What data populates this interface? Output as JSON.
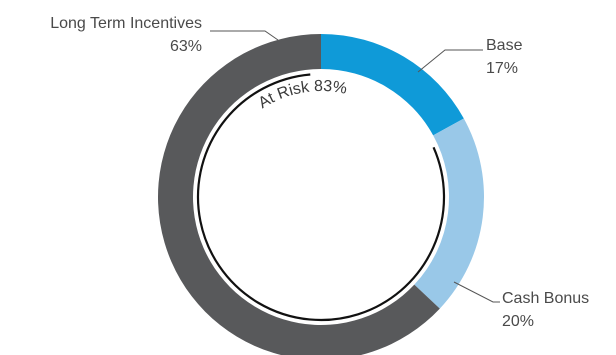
{
  "chart_data": {
    "type": "pie",
    "variant": "donut",
    "categories": [
      "Base",
      "Cash Bonus",
      "Long Term Incentives"
    ],
    "values": [
      17,
      20,
      63
    ],
    "value_labels": [
      "17%",
      "20%",
      "63%"
    ],
    "colors": [
      "#0f9ad8",
      "#99c8e8",
      "#58595b"
    ],
    "inner_annotation": "At Risk 83%",
    "legend": "none"
  }
}
